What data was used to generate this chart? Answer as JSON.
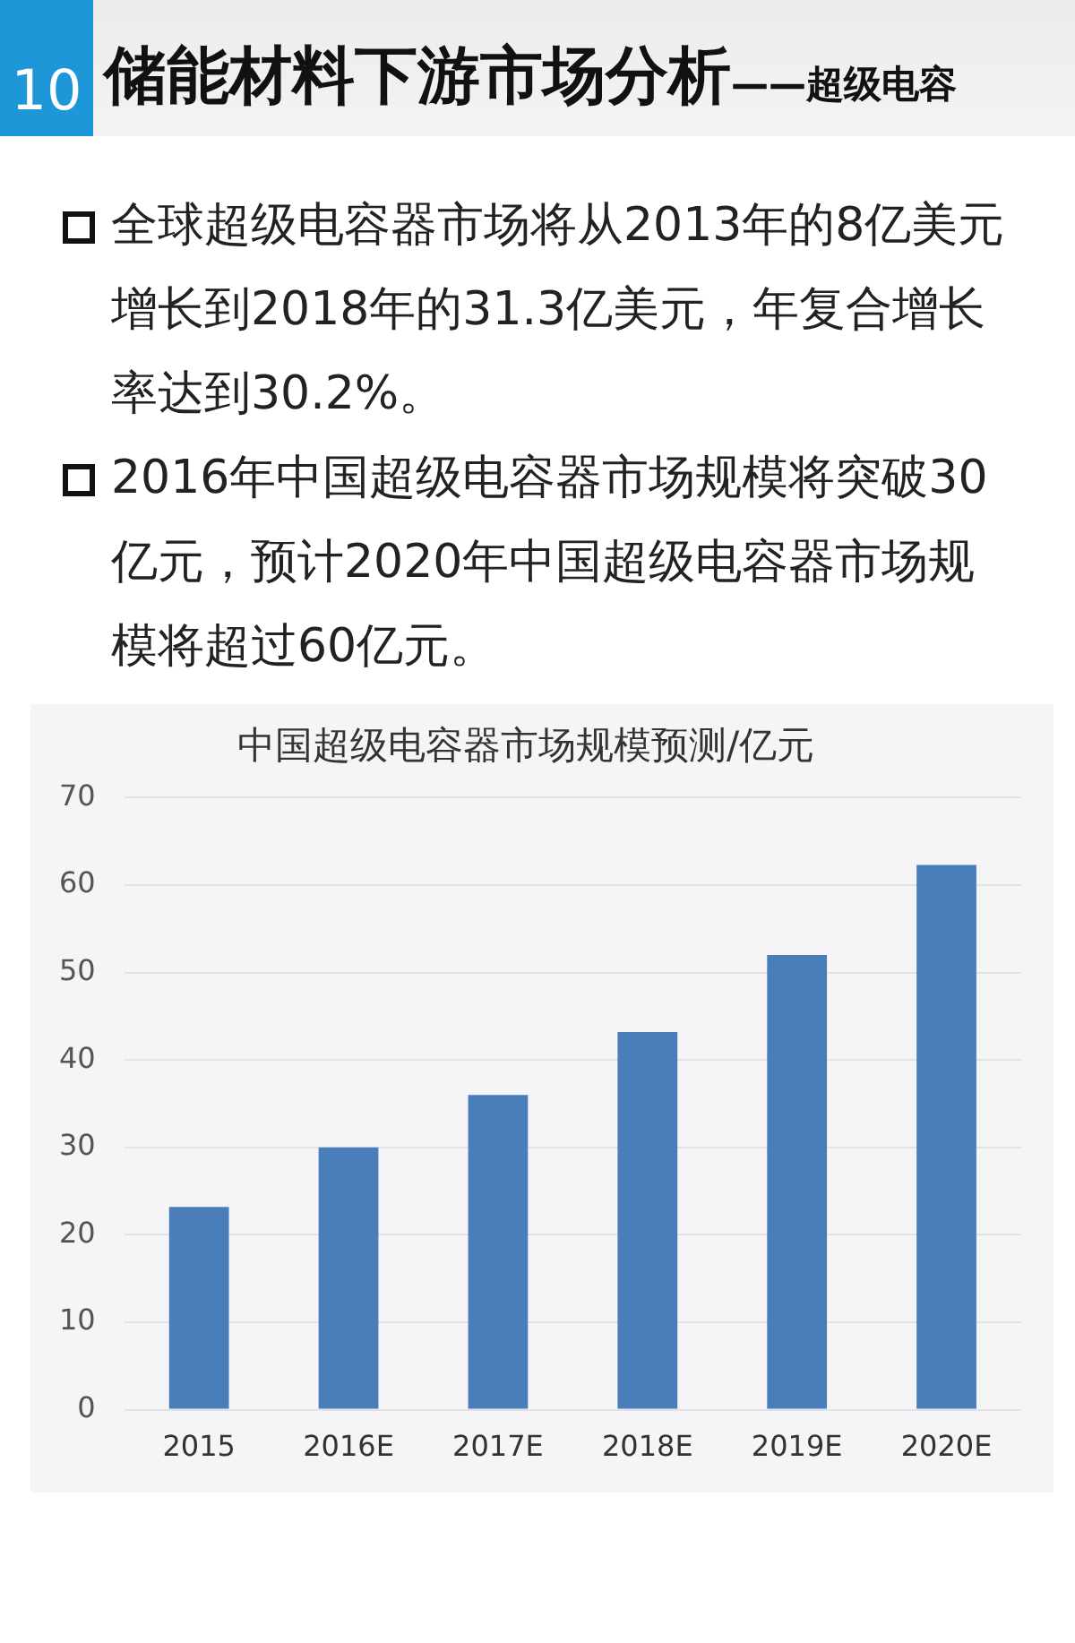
{
  "chart_data": {
    "type": "bar",
    "title": "中国超级电容器市场规模预测/亿元",
    "categories": [
      "2015",
      "2016E",
      "2017E",
      "2018E",
      "2019E",
      "2020E"
    ],
    "values": [
      23.2,
      30,
      36,
      43.2,
      52,
      62.3
    ],
    "color": "#4a7ebb",
    "ylim": [
      0,
      70
    ],
    "yticks": [
      0,
      10,
      20,
      30,
      40,
      50,
      60,
      70
    ],
    "grid": "y",
    "annotations": [
      "10",
      "储能材料下游市场分析——超级电容",
      "全球超级电容器市场将从2013年的8亿美元增长到2018年的31.3亿美元，年复合增长率达到30.2%。",
      "2016年中国超级电容器市场规模将突破30亿元，预计2020年中国超级电容器市场规模将超过60亿元。"
    ]
  }
}
